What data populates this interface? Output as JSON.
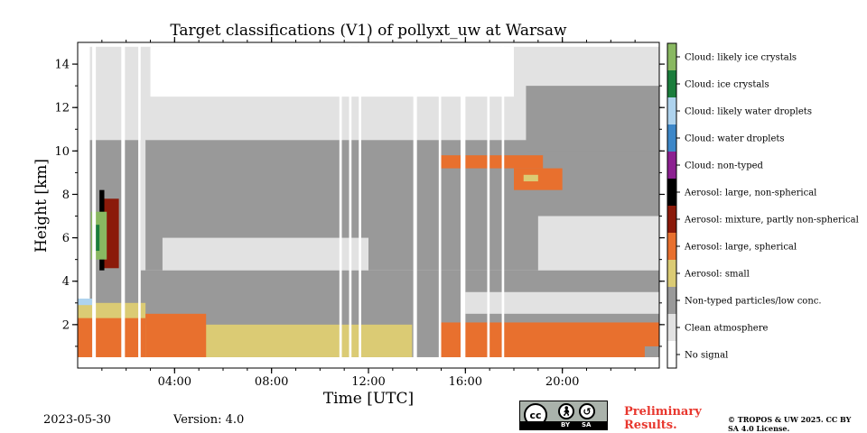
{
  "meta": {
    "date": "2023-05-30",
    "version": "Version: 4.0"
  },
  "footer": {
    "preliminary": "Preliminary Results.",
    "copyright": "© TROPOS & UW 2025. CC BY SA 4.0 License.",
    "license_logo": {
      "main": "cc",
      "by": "BY",
      "sa": "SA"
    }
  },
  "chart_data": {
    "type": "heatmap",
    "title": "Target classifications (V1) of pollyxt_uw at Warsaw",
    "xlabel": "Time [UTC]",
    "ylabel": "Height [km]",
    "x_ticks": [
      "04:00",
      "08:00",
      "12:00",
      "16:00",
      "20:00"
    ],
    "x_tick_hours": [
      4,
      8,
      12,
      16,
      20
    ],
    "xlim_hours": [
      0,
      24
    ],
    "y_ticks": [
      2,
      4,
      6,
      8,
      10,
      12,
      14
    ],
    "ylim_km": [
      0,
      15
    ],
    "classes": [
      {
        "label": "No signal",
        "color": "#ffffff"
      },
      {
        "label": "Clean atmosphere",
        "color": "#e2e2e2"
      },
      {
        "label": "Non-typed particles/low conc.",
        "color": "#999999"
      },
      {
        "label": "Aerosol: small",
        "color": "#dbcb74"
      },
      {
        "label": "Aerosol: large, spherical",
        "color": "#e8702e"
      },
      {
        "label": "Aerosol: mixture, partly non-spherical",
        "color": "#8b1a0a"
      },
      {
        "label": "Aerosol: large, non-spherical",
        "color": "#000000"
      },
      {
        "label": "Cloud: non-typed",
        "color": "#8c2091"
      },
      {
        "label": "Cloud: water droplets",
        "color": "#3d87c8"
      },
      {
        "label": "Cloud: likely water droplets",
        "color": "#aed3ee"
      },
      {
        "label": "Cloud: ice crystals",
        "color": "#1b7d3c"
      },
      {
        "label": "Cloud: likely ice crystals",
        "color": "#89b861"
      }
    ],
    "regions": [
      {
        "class": 1,
        "t0": 0.5,
        "t1": 24,
        "h0": 0.5,
        "h1": 14.8
      },
      {
        "class": 2,
        "t0": 0.5,
        "t1": 24,
        "h0": 0.5,
        "h1": 4.5
      },
      {
        "class": 2,
        "t0": 2.8,
        "t1": 24,
        "h0": 4.5,
        "h1": 10.5
      },
      {
        "class": 2,
        "t0": 0.5,
        "t1": 2.6,
        "h0": 3.0,
        "h1": 10.5
      },
      {
        "class": 2,
        "t0": 18.5,
        "t1": 24,
        "h0": 10.0,
        "h1": 13.0
      },
      {
        "class": 1,
        "t0": 3.5,
        "t1": 12.0,
        "h0": 4.5,
        "h1": 6.0
      },
      {
        "class": 1,
        "t0": 16.0,
        "t1": 24,
        "h0": 2.5,
        "h1": 3.5
      },
      {
        "class": 1,
        "t0": 19.0,
        "t1": 24,
        "h0": 4.5,
        "h1": 7.0
      },
      {
        "class": 0,
        "t0": 3.0,
        "t1": 18.0,
        "h0": 12.5,
        "h1": 14.8
      },
      {
        "class": 3,
        "t0": 0,
        "t1": 2.8,
        "h0": 0.5,
        "h1": 3.0
      },
      {
        "class": 3,
        "t0": 2.8,
        "t1": 13.8,
        "h0": 0.5,
        "h1": 2.0
      },
      {
        "class": 4,
        "t0": 0,
        "t1": 2.8,
        "h0": 0.5,
        "h1": 2.3
      },
      {
        "class": 4,
        "t0": 2.8,
        "t1": 5.3,
        "h0": 0.5,
        "h1": 2.5
      },
      {
        "class": 4,
        "t0": 15.0,
        "t1": 24,
        "h0": 0.5,
        "h1": 2.1
      },
      {
        "class": 2,
        "t0": 23.4,
        "t1": 24,
        "h0": 0.5,
        "h1": 1.0
      },
      {
        "class": 4,
        "t0": 15.0,
        "t1": 19.2,
        "h0": 9.2,
        "h1": 9.8
      },
      {
        "class": 4,
        "t0": 18.0,
        "t1": 20.0,
        "h0": 8.2,
        "h1": 9.2
      },
      {
        "class": 3,
        "t0": 18.4,
        "t1": 19.0,
        "h0": 8.6,
        "h1": 8.9
      },
      {
        "class": 5,
        "t0": 1.0,
        "t1": 1.7,
        "h0": 4.6,
        "h1": 7.8
      },
      {
        "class": 6,
        "t0": 0.9,
        "t1": 1.1,
        "h0": 4.5,
        "h1": 8.2
      },
      {
        "class": 11,
        "t0": 0.55,
        "t1": 1.2,
        "h0": 5.0,
        "h1": 7.2
      },
      {
        "class": 10,
        "t0": 0.6,
        "t1": 0.9,
        "h0": 5.4,
        "h1": 6.6
      },
      {
        "class": 9,
        "t0": 0,
        "t1": 0.6,
        "h0": 2.9,
        "h1": 3.2
      },
      {
        "class": 0,
        "t0": 0,
        "t1": 0.5,
        "h0": 3.2,
        "h1": 15
      }
    ],
    "no_signal_gaps_hours": [
      [
        0.6,
        0.75
      ],
      [
        1.8,
        1.95
      ],
      [
        2.5,
        2.6
      ],
      [
        10.8,
        10.9
      ],
      [
        11.2,
        11.3
      ],
      [
        11.6,
        11.7
      ],
      [
        13.85,
        14.0
      ],
      [
        14.9,
        15.0
      ],
      [
        15.8,
        16.0
      ],
      [
        16.9,
        17.0
      ],
      [
        17.5,
        17.6
      ]
    ]
  }
}
